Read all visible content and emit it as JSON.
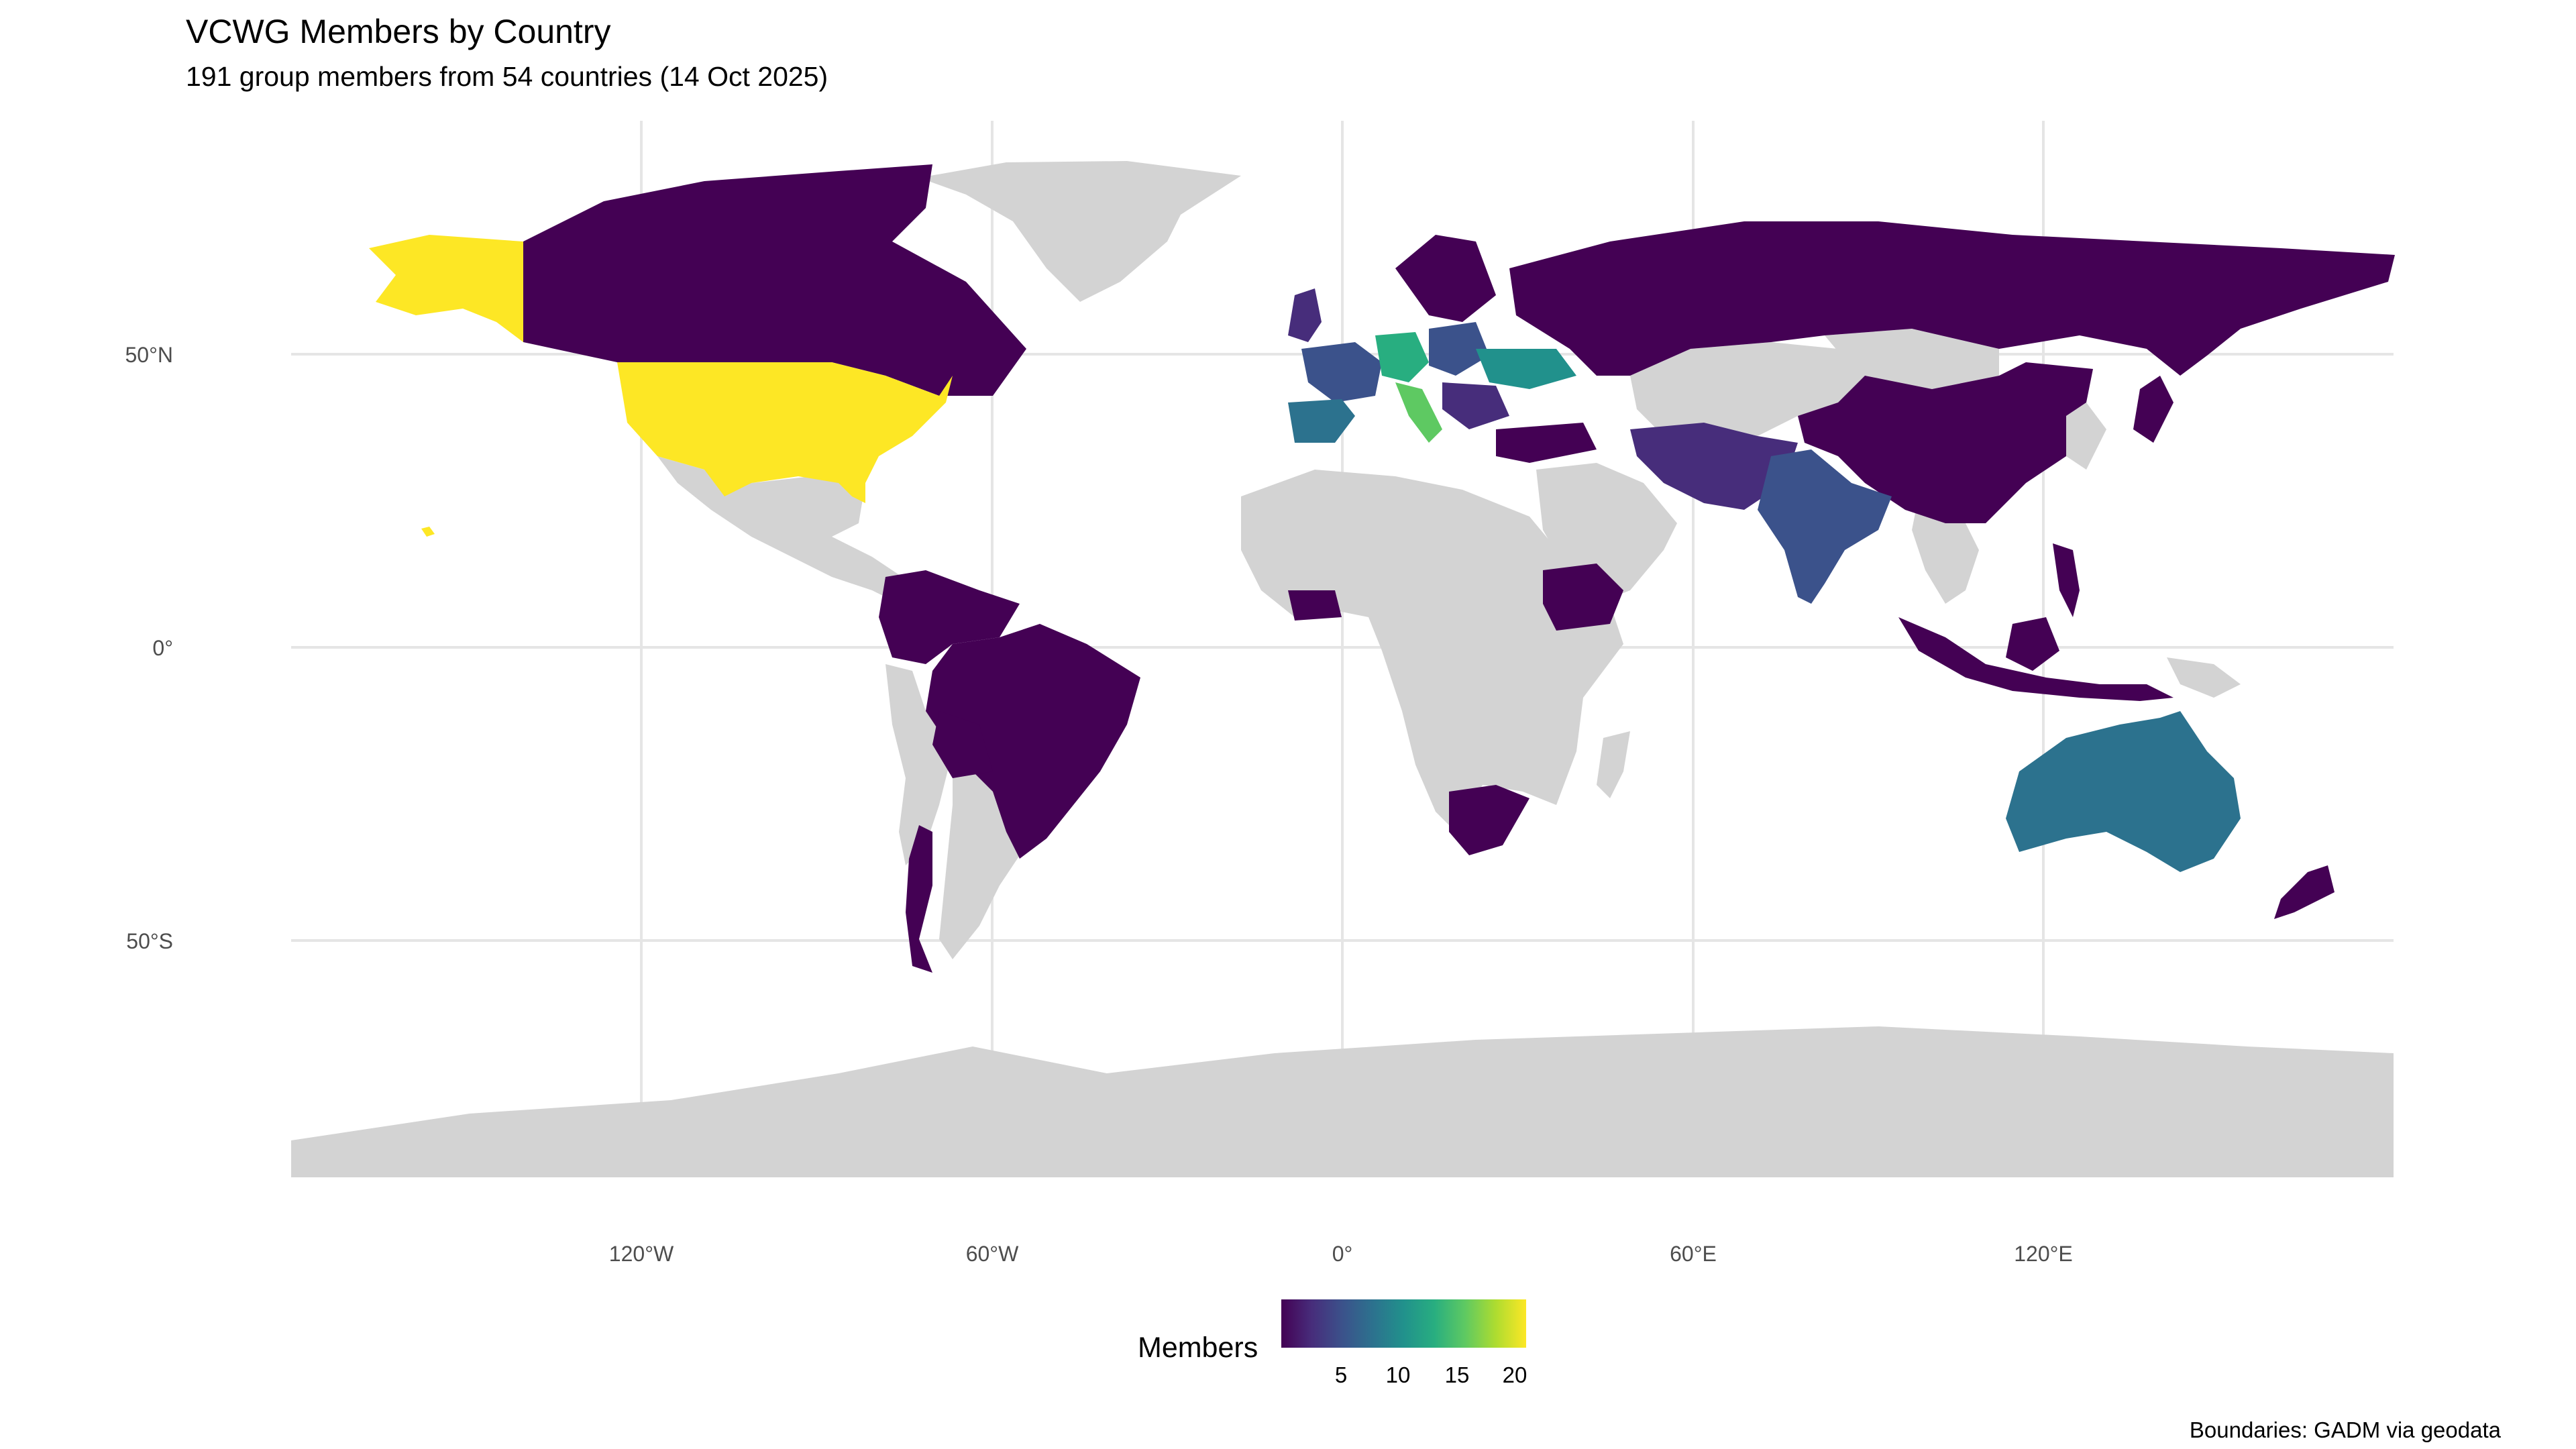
{
  "title": "VCWG Members by Country",
  "subtitle": "191 group members from 54 countries (14 Oct 2025)",
  "caption": "Boundaries: GADM via geodata",
  "legend": {
    "title": "Members",
    "ticks": [
      "5",
      "10",
      "15",
      "20"
    ],
    "range": [
      1,
      21
    ],
    "palette": [
      "#440154",
      "#472d7b",
      "#3b528b",
      "#2c728e",
      "#21918c",
      "#28ae80",
      "#5ec962",
      "#addc30",
      "#fde725"
    ]
  },
  "axes": {
    "y_labels": [
      "50°N",
      "0°",
      "50°S"
    ],
    "x_labels": [
      "120°W",
      "60°W",
      "0°",
      "60°E",
      "120°E"
    ]
  },
  "colors": {
    "no_data": "#d3d3d3",
    "grid": "#e5e5e5",
    "low": "#440154",
    "mid": "#21918c",
    "high": "#fde725"
  },
  "chart_data": {
    "type": "choropleth",
    "title": "VCWG Members by Country",
    "legend_title": "Members",
    "projection": "equirectangular",
    "countries_estimated": [
      {
        "name": "United States",
        "members": 21
      },
      {
        "name": "Italy",
        "members": 17
      },
      {
        "name": "Germany",
        "members": 14
      },
      {
        "name": "Ukraine",
        "members": 11
      },
      {
        "name": "Australia",
        "members": 11
      },
      {
        "name": "Spain",
        "members": 9
      },
      {
        "name": "Poland",
        "members": 6
      },
      {
        "name": "India",
        "members": 6
      },
      {
        "name": "France",
        "members": 4
      },
      {
        "name": "Russia",
        "members": 2
      },
      {
        "name": "Canada",
        "members": 1
      },
      {
        "name": "Brazil",
        "members": 1
      },
      {
        "name": "China",
        "members": 1
      },
      {
        "name": "Finland",
        "members": 1
      },
      {
        "name": "Sweden",
        "members": 1
      },
      {
        "name": "Norway",
        "members": 1
      },
      {
        "name": "United Kingdom",
        "members": 2
      },
      {
        "name": "Indonesia",
        "members": 1
      },
      {
        "name": "New Zealand",
        "members": 1
      },
      {
        "name": "South Africa",
        "members": 1
      },
      {
        "name": "Ethiopia",
        "members": 1
      },
      {
        "name": "Côte d'Ivoire",
        "members": 1
      },
      {
        "name": "Ghana",
        "members": 1
      },
      {
        "name": "Colombia",
        "members": 1
      },
      {
        "name": "Venezuela",
        "members": 1
      },
      {
        "name": "Peru",
        "members": 1
      },
      {
        "name": "Bolivia",
        "members": 1
      },
      {
        "name": "Chile",
        "members": 1
      },
      {
        "name": "Argentina",
        "members": 1
      },
      {
        "name": "Uruguay",
        "members": 1
      },
      {
        "name": "Iran",
        "members": 1
      },
      {
        "name": "Pakistan",
        "members": 1
      },
      {
        "name": "Turkey",
        "members": 1
      },
      {
        "name": "Philippines",
        "members": 1
      },
      {
        "name": "Japan",
        "members": 1
      },
      {
        "name": "Bangladesh",
        "members": 1
      },
      {
        "name": "Sri Lanka",
        "members": 1
      },
      {
        "name": "Mexico",
        "members": 0
      }
    ]
  }
}
